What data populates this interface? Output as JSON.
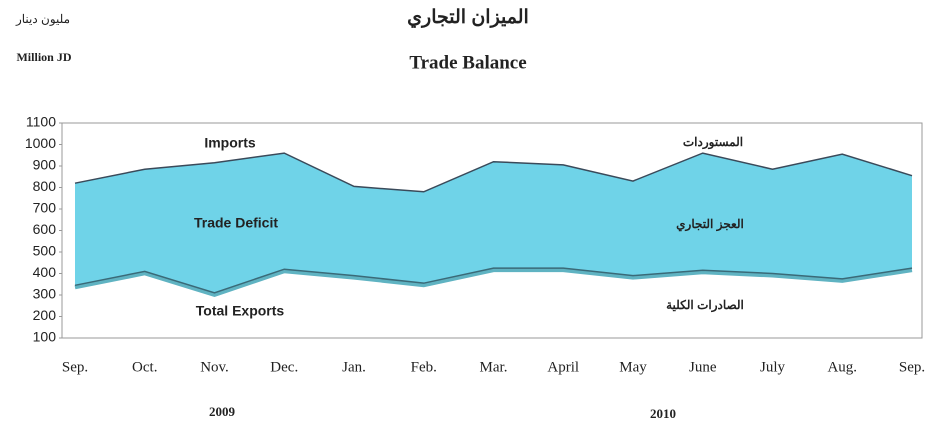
{
  "chart_data": {
    "type": "area",
    "title": "الميزان التجاري",
    "subtitle": "Trade Balance",
    "y_axis_label": "Million JD",
    "y_axis_label_ar": "مليون دينار",
    "categories": [
      "Sep.",
      "Oct.",
      "Nov.",
      "Dec.",
      "Jan.",
      "Feb.",
      "Mar.",
      "April",
      "May",
      "June",
      "July",
      "Aug.",
      "Sep."
    ],
    "year_labels": [
      "2009",
      "2010"
    ],
    "series": [
      {
        "name": "Imports",
        "color": "#3a4a5a",
        "values": [
          820,
          885,
          915,
          960,
          805,
          780,
          920,
          905,
          830,
          960,
          885,
          955,
          855
        ]
      },
      {
        "name": "Total Exports",
        "color": "#3a6a78",
        "values": [
          345,
          410,
          310,
          420,
          390,
          355,
          425,
          425,
          390,
          415,
          400,
          375,
          425
        ]
      }
    ],
    "fill_color": "#6fd3e8",
    "annotations": [
      "Trade Deficit",
      "المستوردات",
      "العجز التجاري",
      "الصادرات الكلية"
    ],
    "ylim": [
      100,
      1100
    ],
    "yticks": [
      100,
      200,
      300,
      400,
      500,
      600,
      700,
      800,
      900,
      1000,
      1100
    ],
    "grid": false
  }
}
